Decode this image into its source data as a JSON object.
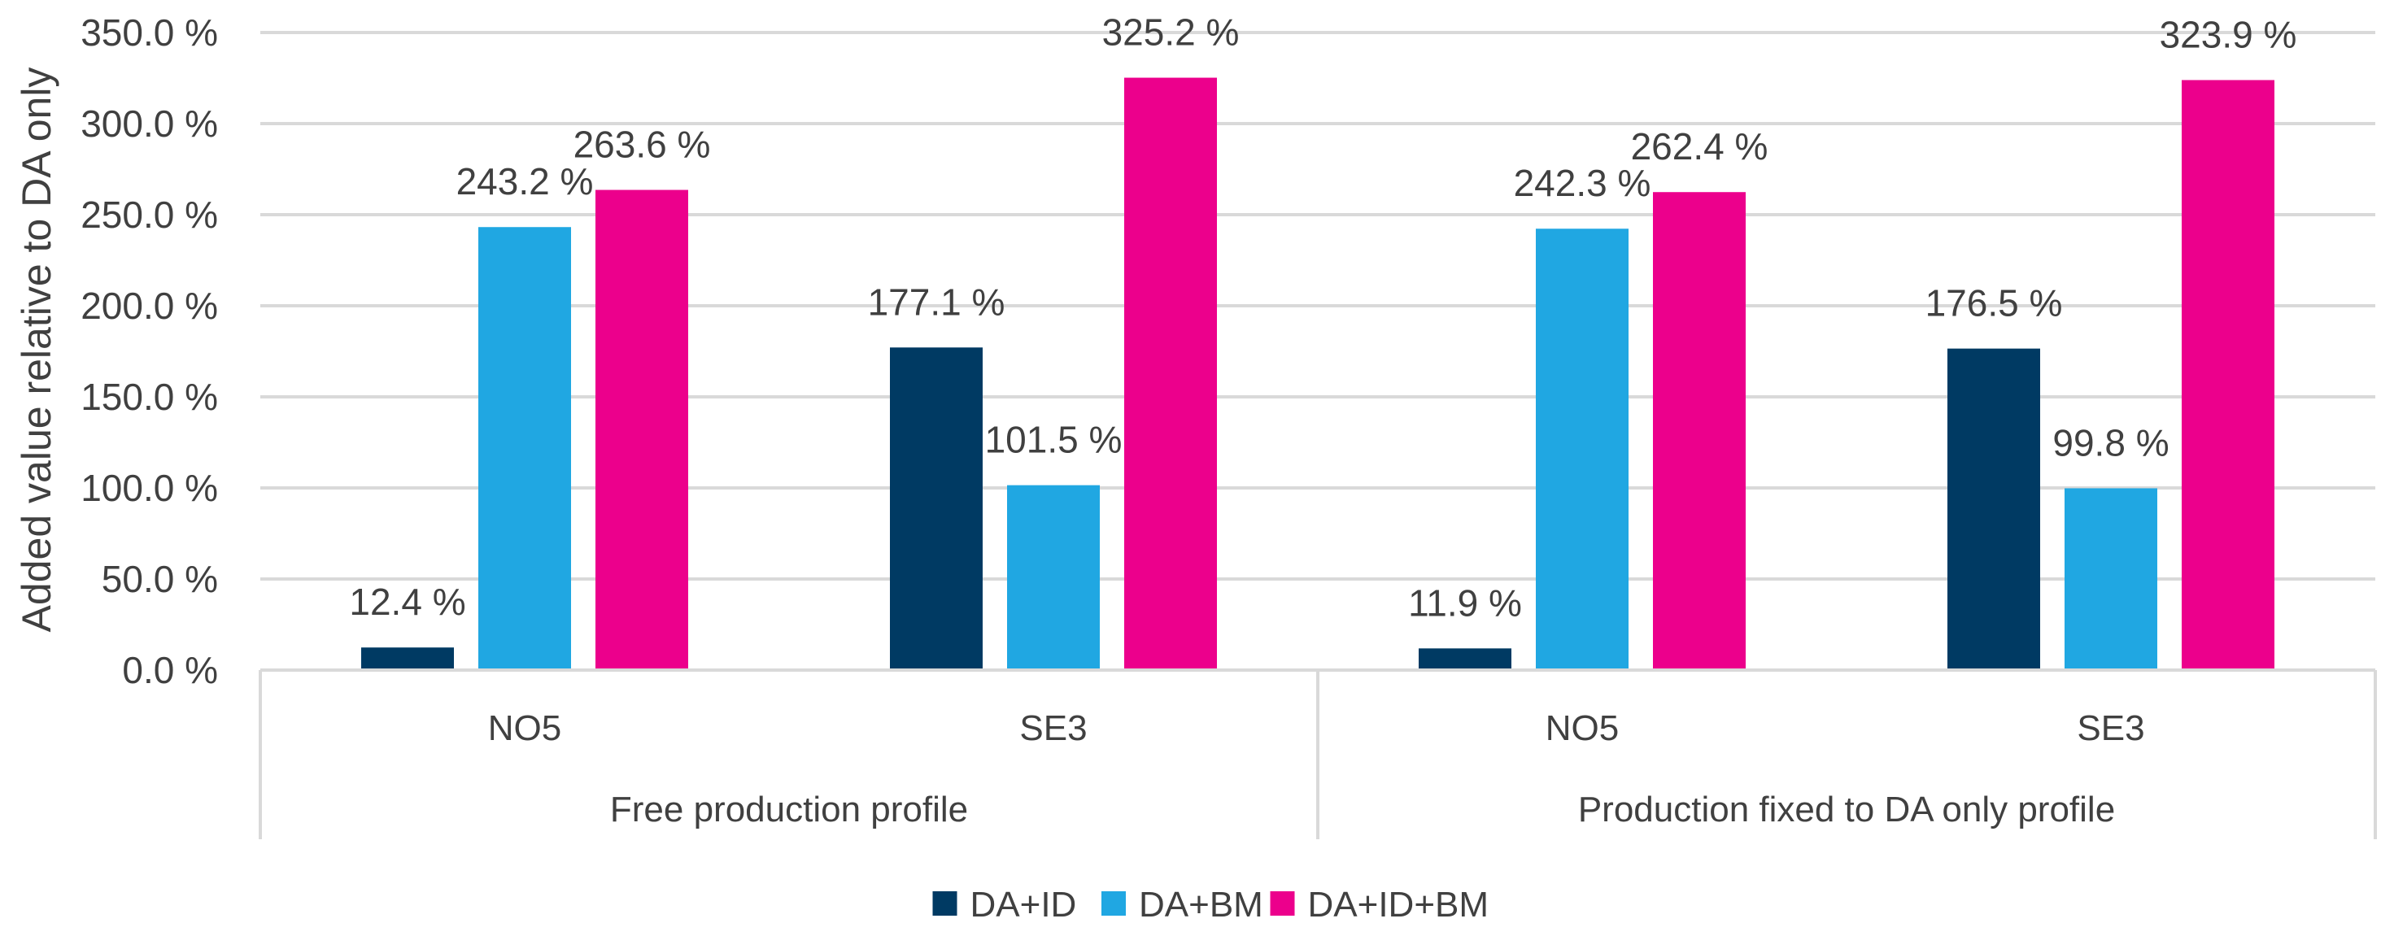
{
  "chart_data": {
    "type": "bar",
    "title": "",
    "xlabel": "",
    "ylabel": "Added value relative to DA only",
    "ylim": [
      0,
      350
    ],
    "ytick_step": 50,
    "ytick_labels": [
      "0.0 %",
      "50.0 %",
      "100.0 %",
      "150.0 %",
      "200.0 %",
      "250.0 %",
      "300.0 %",
      "350.0 %"
    ],
    "grid": true,
    "legend_position": "bottom",
    "groups": [
      {
        "label": "Free production profile",
        "categories": [
          "NO5",
          "SE3"
        ]
      },
      {
        "label": "Production fixed to DA only profile",
        "categories": [
          "NO5",
          "SE3"
        ]
      }
    ],
    "series": [
      {
        "name": "DA+ID",
        "color": "#003a63",
        "values": [
          12.4,
          177.1,
          11.9,
          176.5
        ],
        "labels": [
          "12.4 %",
          "177.1 %",
          "11.9 %",
          "176.5 %"
        ]
      },
      {
        "name": "DA+BM",
        "color": "#20a7e2",
        "values": [
          243.2,
          101.5,
          242.3,
          99.8
        ],
        "labels": [
          "243.2 %",
          "101.5 %",
          "242.3 %",
          "99.8 %"
        ]
      },
      {
        "name": "DA+ID+BM",
        "color": "#ec008c",
        "values": [
          263.6,
          325.2,
          262.4,
          323.9
        ],
        "labels": [
          "263.6 %",
          "325.2 %",
          "262.4 %",
          "323.9 %"
        ]
      }
    ]
  }
}
